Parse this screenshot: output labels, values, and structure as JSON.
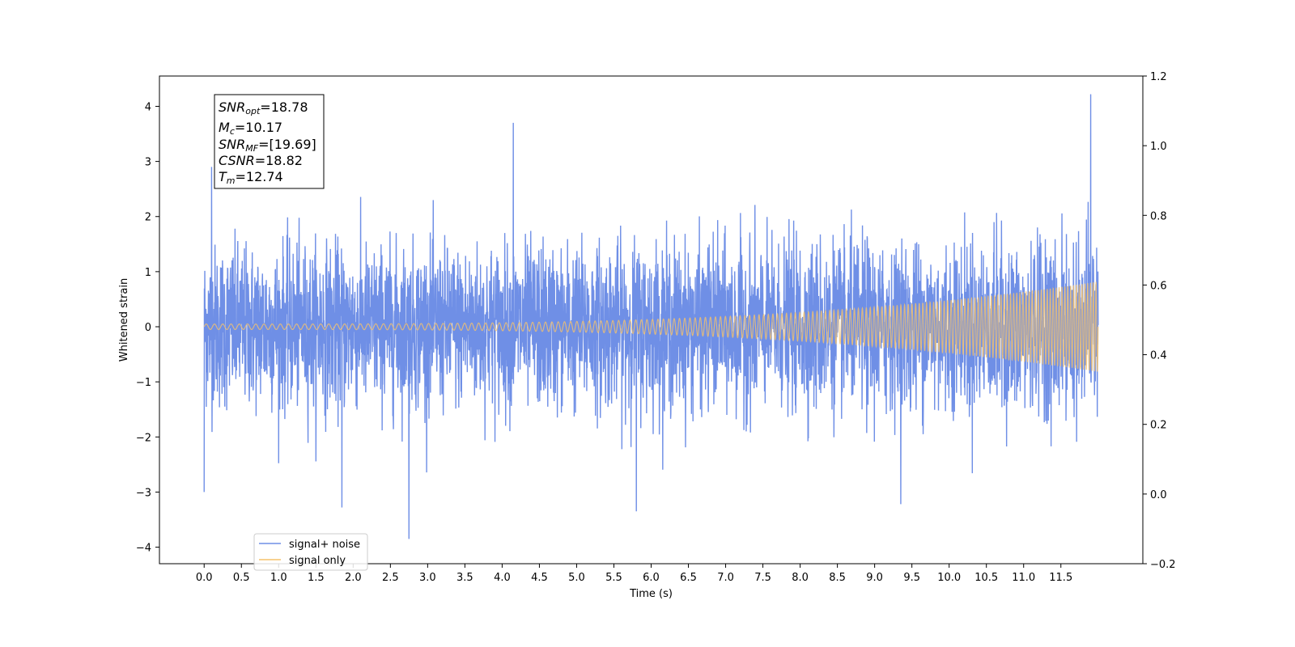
{
  "chart_data": {
    "type": "line",
    "title": "",
    "xlabel": "Time (s)",
    "ylabel": "Whitened strain",
    "xlim": [
      -0.6,
      12.6
    ],
    "ylim": [
      -4.3,
      4.55
    ],
    "ylim_right": [
      -0.2,
      1.2
    ],
    "grid": false,
    "legend_position": "lower-left",
    "x_ticks": [
      0.0,
      0.5,
      1.0,
      1.5,
      2.0,
      2.5,
      3.0,
      3.5,
      4.0,
      4.5,
      5.0,
      5.5,
      6.0,
      6.5,
      7.0,
      7.5,
      8.0,
      8.5,
      9.0,
      9.5,
      10.0,
      10.5,
      11.0,
      11.5
    ],
    "x_tick_labels": [
      "0.0",
      "0.5",
      "1.0",
      "1.5",
      "2.0",
      "2.5",
      "3.0",
      "3.5",
      "4.0",
      "4.5",
      "5.0",
      "5.5",
      "6.0",
      "6.5",
      "7.0",
      "7.5",
      "8.0",
      "8.5",
      "9.0",
      "9.5",
      "10.0",
      "10.5",
      "11.0",
      "11.5"
    ],
    "y_ticks": [
      4,
      3,
      2,
      1,
      0,
      -1,
      -2,
      -3,
      -4
    ],
    "y_tick_labels": [
      "4",
      "3",
      "2",
      "1",
      "0",
      "−1",
      "−2",
      "−3",
      "−4"
    ],
    "y_right_ticks": [
      1.2,
      1.0,
      0.8,
      0.6,
      0.4,
      0.2,
      0.0,
      -0.2
    ],
    "y_right_tick_labels": [
      "1.2",
      "1.0",
      "0.8",
      "0.6",
      "0.4",
      "0.2",
      "0.0",
      "−0.2"
    ],
    "time_range": [
      0.0,
      12.0
    ],
    "series": [
      {
        "name": "signal+ noise",
        "color": "#6f8fe6",
        "description_values": {
          "noise_band_typical": [
            -1.6,
            1.8
          ],
          "peak_values": [
            {
              "x": 0.0,
              "y": -3.0
            },
            {
              "x": 0.1,
              "y": 2.9
            },
            {
              "x": 1.85,
              "y": -3.28
            },
            {
              "x": 2.75,
              "y": -3.85
            },
            {
              "x": 4.15,
              "y": 3.7
            },
            {
              "x": 5.8,
              "y": -3.35
            },
            {
              "x": 9.35,
              "y": -3.22
            },
            {
              "x": 11.9,
              "y": 4.22
            }
          ]
        }
      },
      {
        "name": "signal only",
        "color": "#f5c26b",
        "amplitude_start": 0.05,
        "amplitude_end": 0.82
      }
    ],
    "annotation": {
      "lines": [
        {
          "base": "SNR",
          "sub": "opt",
          "value": "=18.78"
        },
        {
          "base": "M",
          "sub": "c",
          "value": "=10.17"
        },
        {
          "base": "SNR",
          "sub": "MF",
          "value": "=[19.69]"
        },
        {
          "base": "CSNR",
          "sub": "",
          "value": "=18.82"
        },
        {
          "base": "T",
          "sub": "m",
          "value": "=12.74"
        }
      ]
    }
  }
}
